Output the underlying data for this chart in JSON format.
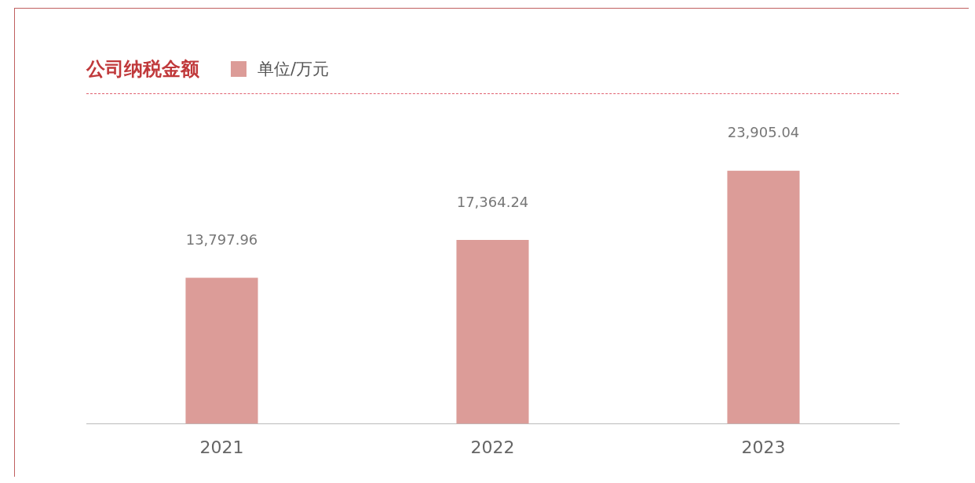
{
  "chart_data": {
    "type": "bar",
    "title": "公司纳税金额",
    "categories": [
      "2021",
      "2022",
      "2023"
    ],
    "series": [
      {
        "name": "单位/万元",
        "color": "#dc9c98",
        "values": [
          13797.96,
          17364.24,
          23905.04
        ],
        "value_labels": [
          "13,797.96",
          "17,364.24",
          "23,905.04"
        ]
      }
    ],
    "legend": "top left",
    "grid": false
  }
}
